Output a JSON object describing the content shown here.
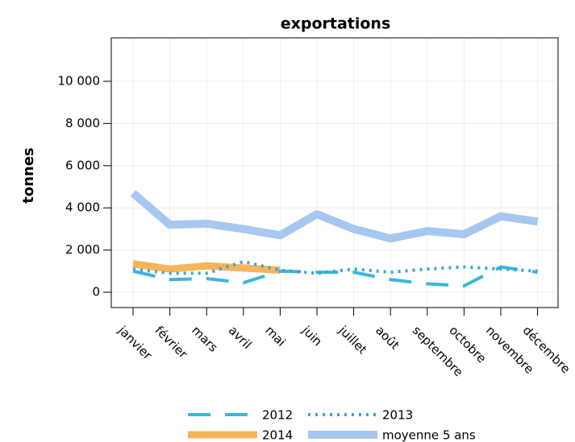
{
  "chart_data": {
    "type": "line",
    "title": "exportations",
    "y_label": "tonnes",
    "categories": [
      "janvier",
      "février",
      "mars",
      "avril",
      "mai",
      "juin",
      "juillet",
      "août",
      "septembre",
      "octobre",
      "novembre",
      "décembre"
    ],
    "series": [
      {
        "name": "2012",
        "color": "#3db4e0",
        "style": "dashed",
        "width": 4,
        "values": [
          1000,
          600,
          650,
          450,
          1000,
          950,
          950,
          600,
          400,
          300,
          1200,
          950
        ]
      },
      {
        "name": "2013",
        "color": "#3ba6d6",
        "style": "dotted",
        "width": 4,
        "values": [
          1100,
          900,
          900,
          1450,
          1050,
          900,
          1100,
          950,
          1100,
          1200,
          1100,
          1000
        ]
      },
      {
        "name": "2014",
        "color": "#f7b55b",
        "style": "solid",
        "width": 9,
        "values": [
          1350,
          1100,
          1250,
          1150,
          1050,
          null,
          null,
          null,
          null,
          null,
          null,
          null
        ]
      },
      {
        "name": "moyenne 5 ans",
        "color": "#a6c8f0",
        "style": "solid",
        "width": 10,
        "values": [
          4700,
          3200,
          3250,
          3000,
          2700,
          3700,
          3000,
          2550,
          2900,
          2750,
          3600,
          3350
        ]
      }
    ],
    "ylim": [
      -725,
      12060
    ],
    "yticks": [
      0,
      {
        "value": 2000,
        "label": "2 000"
      },
      {
        "value": 4000,
        "label": "4 000"
      },
      {
        "value": 6000,
        "label": "6 000"
      },
      {
        "value": 8000,
        "label": "8 000"
      },
      {
        "value": 10000,
        "label": "10 000"
      }
    ],
    "grid": true
  }
}
